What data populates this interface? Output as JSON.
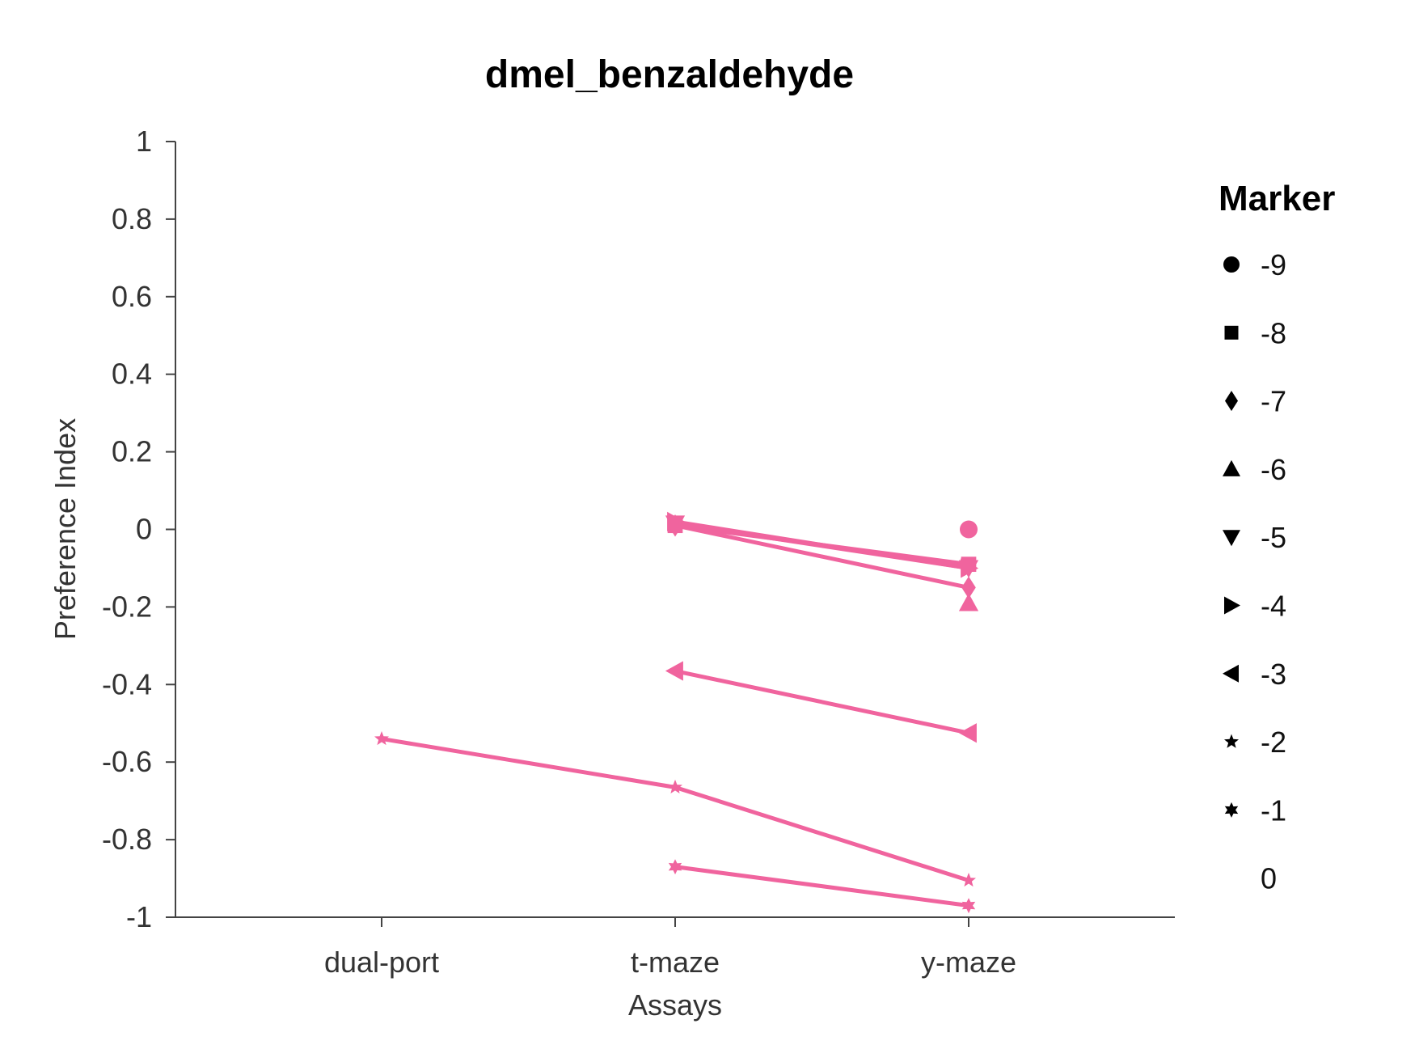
{
  "chart_data": {
    "type": "line",
    "title": "dmel_benzaldehyde",
    "xlabel": "Assays",
    "ylabel": "Preference Index",
    "categories": [
      "dual-port",
      "t-maze",
      "y-maze"
    ],
    "ylim": [
      -1,
      1
    ],
    "yticks": [
      1,
      0.8,
      0.6,
      0.4,
      0.2,
      0,
      -0.2,
      -0.4,
      -0.6,
      -0.8,
      -1
    ],
    "ytick_labels": [
      "1",
      "0.8",
      "0.6",
      "0.4",
      "0.2",
      "0",
      "-0.2",
      "-0.4",
      "-0.6",
      "-0.8",
      "-1"
    ],
    "color": "#f0649e",
    "legend": {
      "title": "Marker",
      "placement": "right",
      "entries": [
        {
          "label": "-9",
          "marker": "circle"
        },
        {
          "label": "-8",
          "marker": "square"
        },
        {
          "label": "-7",
          "marker": "diamond"
        },
        {
          "label": "-6",
          "marker": "triangle-up"
        },
        {
          "label": "-5",
          "marker": "triangle-down"
        },
        {
          "label": "-4",
          "marker": "triangle-right"
        },
        {
          "label": "-3",
          "marker": "triangle-left"
        },
        {
          "label": "-2",
          "marker": "star5"
        },
        {
          "label": "-1",
          "marker": "star6"
        },
        {
          "label": "0",
          "marker": "none"
        }
      ]
    },
    "series": [
      {
        "marker": "circle",
        "points": [
          {
            "x": "y-maze",
            "y": 0.0
          }
        ]
      },
      {
        "marker": "square",
        "points": [
          {
            "x": "t-maze",
            "y": 0.01
          },
          {
            "x": "y-maze",
            "y": -0.09
          }
        ]
      },
      {
        "marker": "diamond",
        "points": [
          {
            "x": "t-maze",
            "y": 0.01
          },
          {
            "x": "y-maze",
            "y": -0.15
          }
        ]
      },
      {
        "marker": "triangle-up",
        "points": [
          {
            "x": "y-maze",
            "y": -0.19
          }
        ]
      },
      {
        "marker": "triangle-down",
        "points": [
          {
            "x": "t-maze",
            "y": 0.015
          },
          {
            "x": "y-maze",
            "y": -0.1
          }
        ]
      },
      {
        "marker": "triangle-right",
        "points": [
          {
            "x": "t-maze",
            "y": 0.02
          },
          {
            "x": "y-maze",
            "y": -0.1
          }
        ]
      },
      {
        "marker": "triangle-left",
        "points": [
          {
            "x": "t-maze",
            "y": -0.365
          },
          {
            "x": "y-maze",
            "y": -0.525
          }
        ]
      },
      {
        "marker": "star5",
        "points": [
          {
            "x": "dual-port",
            "y": -0.54
          },
          {
            "x": "t-maze",
            "y": -0.665
          },
          {
            "x": "y-maze",
            "y": -0.905
          }
        ]
      },
      {
        "marker": "star6",
        "points": [
          {
            "x": "t-maze",
            "y": -0.87
          },
          {
            "x": "y-maze",
            "y": -0.97
          }
        ]
      }
    ]
  }
}
